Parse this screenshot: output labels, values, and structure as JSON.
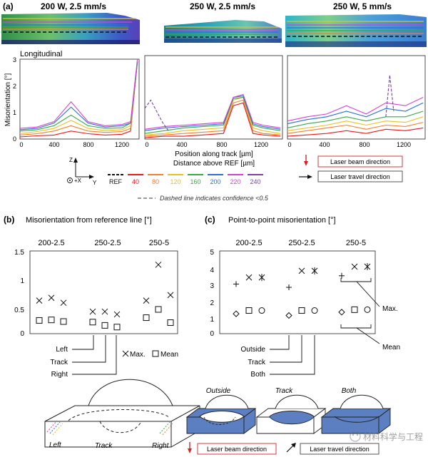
{
  "panel_a": {
    "label": "(a)",
    "maps": [
      {
        "title": "200 W, 2.5 mm/s"
      },
      {
        "title": "250 W, 2.5 mm/s"
      },
      {
        "title": "250 W, 5 mm/s"
      }
    ],
    "subtitle": "Longitudinal",
    "ylabel": "Misorientation [°]",
    "xlabel": "Position along track [µm]",
    "legend_title": "Distance above REF [µm]",
    "legend_entries": [
      {
        "label": "REF",
        "color": "#111111"
      },
      {
        "label": "40",
        "color": "#e41a1c"
      },
      {
        "label": "80",
        "color": "#f07f2e"
      },
      {
        "label": "120",
        "color": "#e8c020"
      },
      {
        "label": "160",
        "color": "#3aa845"
      },
      {
        "label": "200",
        "color": "#2a6fd6"
      },
      {
        "label": "220",
        "color": "#d640d0"
      },
      {
        "label": "240",
        "color": "#7a3fb0"
      }
    ],
    "dashed_note": "Dashed line indicates confidence <0.5",
    "beam_label": "Laser beam direction",
    "travel_label": "Laser travel direction",
    "axes_labels": {
      "z": "Z",
      "y": "Y",
      "x": "+X"
    }
  },
  "chart_data": [
    {
      "type": "line",
      "title": "200 W, 2.5 mm/s",
      "xlabel": "Position along track [µm]",
      "ylabel": "Misorientation [°]",
      "xlim": [
        0,
        1400
      ],
      "ylim": [
        0,
        3
      ],
      "xticks": [
        "0",
        "400",
        "800",
        "1200"
      ],
      "yticks": [
        "0",
        "1",
        "2",
        "3"
      ],
      "series": [
        {
          "name": "40",
          "x": [
            0,
            200,
            400,
            600,
            800,
            1000,
            1200,
            1300,
            1380
          ],
          "y": [
            0.08,
            0.12,
            0.15,
            0.3,
            0.2,
            0.15,
            0.18,
            0.3,
            2.9
          ]
        },
        {
          "name": "80",
          "x": [
            0,
            200,
            400,
            600,
            800,
            1000,
            1200,
            1300,
            1380
          ],
          "y": [
            0.15,
            0.2,
            0.3,
            0.5,
            0.3,
            0.25,
            0.28,
            0.4,
            2.9
          ]
        },
        {
          "name": "120",
          "x": [
            0,
            200,
            400,
            600,
            800,
            1000,
            1200,
            1300,
            1380
          ],
          "y": [
            0.2,
            0.28,
            0.4,
            0.7,
            0.4,
            0.32,
            0.35,
            0.5,
            2.9
          ]
        },
        {
          "name": "160",
          "x": [
            0,
            200,
            400,
            600,
            800,
            1000,
            1200,
            1300,
            1380
          ],
          "y": [
            0.3,
            0.35,
            0.5,
            0.9,
            0.5,
            0.4,
            0.42,
            0.6,
            2.9
          ]
        },
        {
          "name": "200",
          "x": [
            0,
            200,
            400,
            600,
            800,
            1000,
            1200,
            1300,
            1380
          ],
          "y": [
            0.35,
            0.4,
            0.6,
            1.2,
            0.6,
            0.45,
            0.5,
            0.6,
            2.9
          ]
        },
        {
          "name": "220",
          "x": [
            0,
            200,
            400,
            600,
            800,
            1000,
            1200,
            1300,
            1380
          ],
          "y": [
            0.4,
            0.45,
            0.65,
            1.4,
            0.65,
            0.5,
            0.55,
            0.65,
            3.0
          ]
        }
      ]
    },
    {
      "type": "line",
      "title": "250 W, 2.5 mm/s",
      "xlabel": "Position along track [µm]",
      "xlim": [
        0,
        1400
      ],
      "ylim": [
        0,
        3
      ],
      "xticks": [
        "0",
        "400",
        "800",
        "1200"
      ],
      "yticks": [
        "0",
        "1",
        "2",
        "3"
      ],
      "series": [
        {
          "name": "40",
          "x": [
            0,
            200,
            400,
            600,
            800,
            900,
            1000,
            1100,
            1200,
            1380
          ],
          "y": [
            0.05,
            0.1,
            0.1,
            0.15,
            0.2,
            1.2,
            1.3,
            0.2,
            0.15,
            0.1
          ]
        },
        {
          "name": "80",
          "x": [
            0,
            200,
            400,
            600,
            800,
            900,
            1000,
            1100,
            1200,
            1380
          ],
          "y": [
            0.1,
            0.15,
            0.2,
            0.25,
            0.3,
            1.3,
            1.4,
            0.3,
            0.2,
            0.15
          ]
        },
        {
          "name": "120",
          "x": [
            0,
            200,
            400,
            600,
            800,
            900,
            1000,
            1100,
            1200,
            1380
          ],
          "y": [
            0.15,
            0.2,
            0.3,
            0.35,
            0.4,
            1.4,
            1.5,
            0.4,
            0.3,
            0.2
          ]
        },
        {
          "name": "160",
          "x": [
            0,
            200,
            400,
            600,
            800,
            900,
            1000,
            1100,
            1200,
            1380
          ],
          "y": [
            0.2,
            0.3,
            0.4,
            0.45,
            0.5,
            1.45,
            1.5,
            0.5,
            0.4,
            0.3
          ]
        },
        {
          "name": "200",
          "x": [
            0,
            200,
            400,
            600,
            800,
            900,
            1000,
            1100,
            1200,
            1380
          ],
          "y": [
            0.3,
            0.4,
            0.45,
            0.5,
            0.55,
            1.5,
            1.55,
            0.55,
            0.45,
            0.35
          ]
        },
        {
          "name": "220",
          "x": [
            0,
            200,
            400,
            600,
            800,
            900,
            1000,
            1100,
            1200,
            1380
          ],
          "y": [
            0.35,
            0.45,
            0.5,
            0.55,
            0.6,
            1.5,
            1.6,
            0.6,
            0.5,
            0.4
          ]
        },
        {
          "name": "240 (dashed)",
          "x": [
            0,
            60,
            120,
            180,
            240
          ],
          "y": [
            1.1,
            1.4,
            1.0,
            0.6,
            0.3
          ]
        }
      ]
    },
    {
      "type": "line",
      "title": "250 W, 5 mm/s",
      "xlabel": "Position along track [µm]",
      "xlim": [
        0,
        1400
      ],
      "ylim": [
        0,
        3
      ],
      "xticks": [
        "0",
        "400",
        "800",
        "1200"
      ],
      "yticks": [
        "0",
        "1",
        "2",
        "3"
      ],
      "series": [
        {
          "name": "40",
          "x": [
            0,
            200,
            400,
            600,
            800,
            1000,
            1200,
            1380
          ],
          "y": [
            0.1,
            0.15,
            0.2,
            0.3,
            0.2,
            0.35,
            0.3,
            0.4
          ]
        },
        {
          "name": "80",
          "x": [
            0,
            200,
            400,
            600,
            800,
            1000,
            1200,
            1380
          ],
          "y": [
            0.2,
            0.3,
            0.4,
            0.5,
            0.35,
            0.5,
            0.45,
            0.6
          ]
        },
        {
          "name": "120",
          "x": [
            0,
            200,
            400,
            600,
            800,
            1000,
            1200,
            1380
          ],
          "y": [
            0.3,
            0.4,
            0.5,
            0.65,
            0.5,
            0.65,
            0.6,
            0.8
          ]
        },
        {
          "name": "160",
          "x": [
            0,
            200,
            400,
            600,
            800,
            1000,
            1200,
            1380
          ],
          "y": [
            0.4,
            0.55,
            0.65,
            0.8,
            0.65,
            0.8,
            0.8,
            1.0
          ]
        },
        {
          "name": "200",
          "x": [
            0,
            200,
            400,
            600,
            800,
            1000,
            1200,
            1380
          ],
          "y": [
            0.55,
            0.7,
            0.8,
            1.0,
            0.8,
            1.1,
            1.0,
            1.3
          ]
        },
        {
          "name": "220",
          "x": [
            0,
            200,
            400,
            600,
            800,
            1000,
            1200,
            1380
          ],
          "y": [
            0.65,
            0.8,
            0.9,
            1.2,
            0.9,
            1.3,
            1.2,
            1.5
          ]
        },
        {
          "name": "240 (dashed)",
          "x": [
            1000,
            1040,
            1080
          ],
          "y": [
            0.8,
            2.3,
            1.0
          ]
        }
      ]
    },
    {
      "type": "scatter",
      "title": "Misorientation from reference line [°]",
      "categories": [
        "200-2.5",
        "250-2.5",
        "250-5"
      ],
      "ylim": [
        0,
        1.5
      ],
      "yticks": [
        "0",
        "0.5",
        "1",
        "1.5"
      ],
      "point_labels": [
        "Left",
        "Track",
        "Right"
      ],
      "series": [
        {
          "name": "Max.",
          "marker": "x",
          "values": [
            [
              0.6,
              0.65,
              0.56
            ],
            [
              0.4,
              0.4,
              0.35
            ],
            [
              0.6,
              1.25,
              0.7
            ]
          ]
        },
        {
          "name": "Mean",
          "marker": "square",
          "values": [
            [
              0.24,
              0.25,
              0.22
            ],
            [
              0.21,
              0.15,
              0.12
            ],
            [
              0.29,
              0.44,
              0.2
            ]
          ]
        }
      ]
    },
    {
      "type": "scatter",
      "title": "Point-to-point misorientation [°]",
      "categories": [
        "200-2.5",
        "250-2.5",
        "250-5"
      ],
      "ylim": [
        0,
        5
      ],
      "yticks": [
        "0",
        "1",
        "2",
        "3",
        "4",
        "5"
      ],
      "point_labels": [
        "Outside",
        "Track",
        "Both"
      ],
      "series": [
        {
          "name": "Max.",
          "marker": [
            "+",
            "x",
            "asterisk"
          ],
          "values": [
            [
              3.0,
              3.4,
              3.4
            ],
            [
              2.8,
              3.8,
              3.8
            ],
            [
              3.5,
              4.05,
              4.05
            ]
          ]
        },
        {
          "name": "Mean",
          "marker": [
            "diamond",
            "square",
            "circle"
          ],
          "values": [
            [
              1.2,
              1.4,
              1.4
            ],
            [
              1.1,
              1.4,
              1.4
            ],
            [
              1.3,
              1.45,
              1.45
            ]
          ]
        }
      ]
    }
  ],
  "panel_b": {
    "label": "(b)",
    "title": "Misorientation from reference line [°]",
    "cats": [
      "200-2.5",
      "250-2.5",
      "250-5"
    ],
    "yticks": [
      "0",
      "0.5",
      "1",
      "1.5"
    ],
    "callouts": [
      "Left",
      "Track",
      "Right"
    ],
    "legend_max": "Max.",
    "legend_mean": "Mean",
    "schematic": {
      "left": "Left",
      "track": "Track",
      "right": "Right"
    }
  },
  "panel_c": {
    "label": "(c)",
    "title": "Point-to-point misorientation [°]",
    "cats": [
      "200-2.5",
      "250-2.5",
      "250-5"
    ],
    "yticks": [
      "0",
      "1",
      "2",
      "3",
      "4",
      "5"
    ],
    "callouts": [
      "Outside",
      "Track",
      "Both"
    ],
    "max_label": "Max.",
    "mean_label": "Mean",
    "schematic_titles": [
      "Outside",
      "Track",
      "Both"
    ],
    "beam_label": "Laser beam direction",
    "travel_label": "Laser travel direction"
  },
  "watermark": "材料科学与工程"
}
